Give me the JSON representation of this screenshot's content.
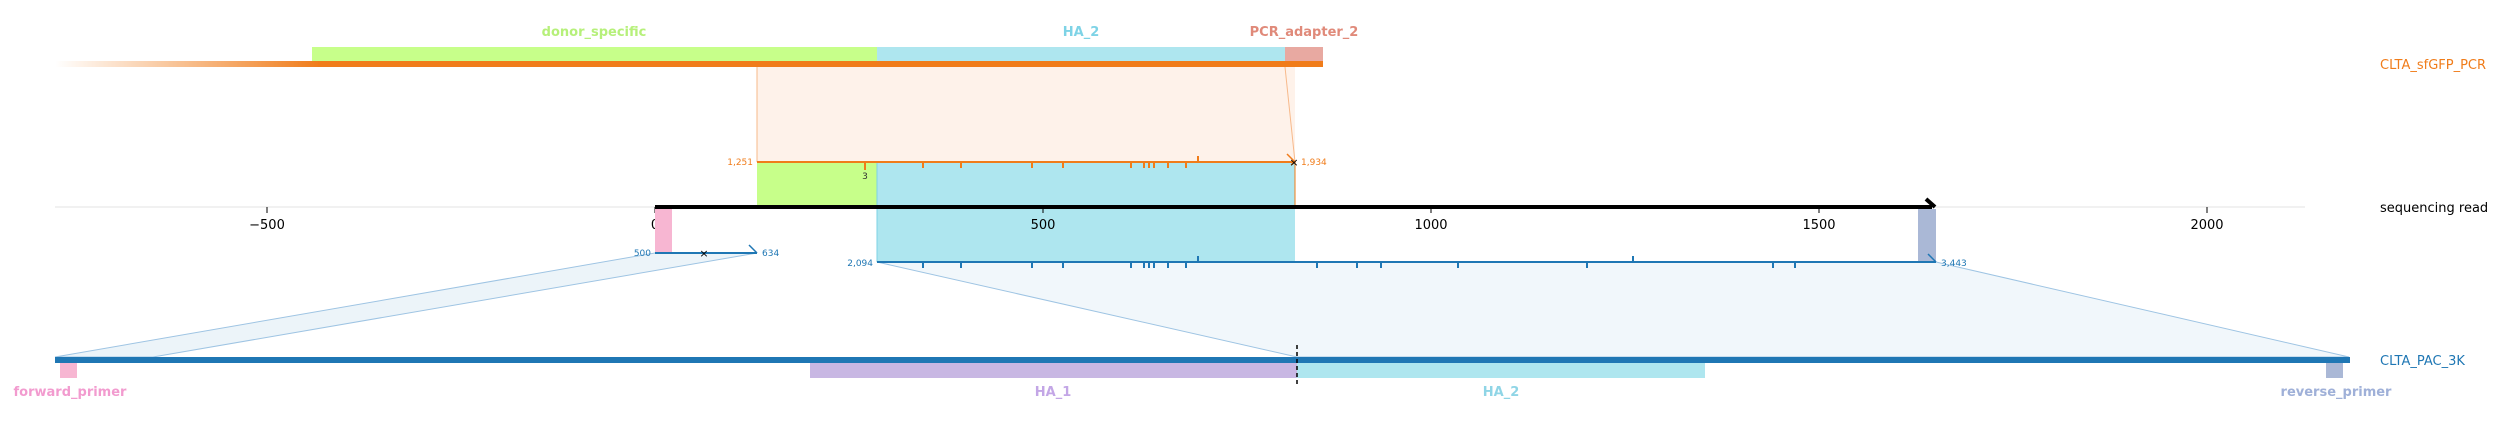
{
  "colors": {
    "donor": "#c7ff8a",
    "ha2": "#aee6ef",
    "pcr_adapter": "#e8a9a1",
    "orange": "#f07c1a",
    "blue": "#1f77b4",
    "pink": "#f7b6d2",
    "ha1": "#c8b7e3",
    "reverse": "#aab8d6",
    "read": "#000000"
  },
  "top_reference": {
    "name": "CLTA_sfGFP_PCR",
    "features": [
      {
        "name": "donor_specific",
        "color": "#b6f07a"
      },
      {
        "name": "HA_2",
        "color": "#7ed3e6"
      },
      {
        "name": "PCR_adapter_2",
        "color": "#e08a7a"
      }
    ],
    "alignment": {
      "ref_start": "1,251",
      "ref_end": "1,934",
      "mark": "3"
    }
  },
  "read": {
    "name": "sequencing read",
    "axis_ticks": [
      "−500",
      "0",
      "500",
      "1000",
      "1500",
      "2000"
    ]
  },
  "bottom_reference": {
    "name": "CLTA_PAC_3K",
    "features": [
      {
        "name": "forward_primer",
        "color": "#f29bcf"
      },
      {
        "name": "HA_1",
        "color": "#c3a6e6"
      },
      {
        "name": "HA_2",
        "color": "#8fd5e6"
      },
      {
        "name": "reverse_primer",
        "color": "#9fb0d8"
      }
    ],
    "alignments": [
      {
        "ref_start": "500",
        "ref_end": "634"
      },
      {
        "ref_start": "2,094",
        "ref_end": "3,443"
      }
    ]
  }
}
